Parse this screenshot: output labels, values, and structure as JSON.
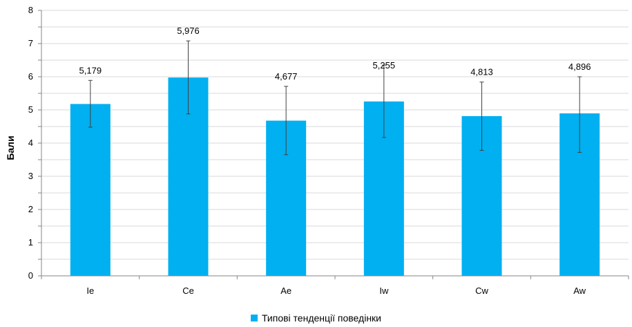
{
  "chart_data": {
    "type": "bar",
    "categories": [
      "Ie",
      "Ce",
      "Ae",
      "Iw",
      "Cw",
      "Aw"
    ],
    "series": [
      {
        "name": "Типові тенденції поведінки",
        "values": [
          5.179,
          5.976,
          4.677,
          5.255,
          4.813,
          4.896
        ],
        "data_labels": [
          "5,179",
          "5,976",
          "4,677",
          "5,255",
          "4,813",
          "4,896"
        ],
        "error_low": [
          4.48,
          4.88,
          3.65,
          4.17,
          3.78,
          3.72
        ],
        "error_high": [
          5.89,
          7.08,
          5.71,
          6.35,
          5.84,
          6.0
        ],
        "color": "#00b0f0"
      }
    ],
    "ylabel": "Бали",
    "xlabel": "",
    "ylim": [
      0,
      8
    ],
    "yticks": [
      "0",
      "1",
      "2",
      "3",
      "4",
      "5",
      "6",
      "7",
      "8"
    ],
    "grid": true,
    "minor_grid": true,
    "legend_position": "bottom"
  },
  "colors": {
    "bar": "#00b0f0",
    "gridline": "#d9d9d9",
    "axis": "#868686",
    "error_bar": "#404040"
  }
}
